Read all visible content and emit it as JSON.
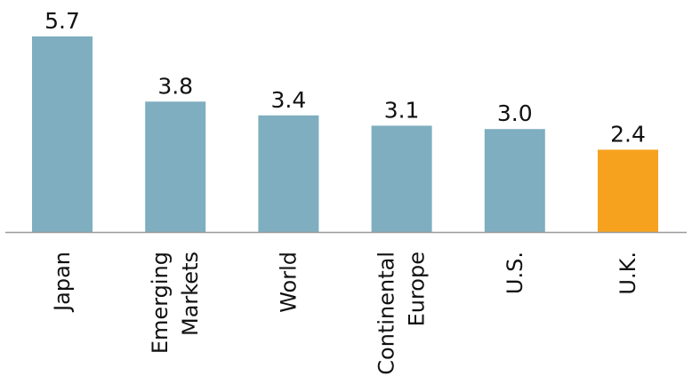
{
  "chart_data": {
    "type": "bar",
    "categories": [
      "Japan",
      "Emerging Markets",
      "World",
      "Continental Europe",
      "U.S.",
      "U.K."
    ],
    "category_lines": [
      [
        "Japan"
      ],
      [
        "Emerging",
        "Markets"
      ],
      [
        "World"
      ],
      [
        "Continental",
        "Europe"
      ],
      [
        "U.S."
      ],
      [
        "U.K."
      ]
    ],
    "values": [
      5.7,
      3.8,
      3.4,
      3.1,
      3.0,
      2.4
    ],
    "value_labels": [
      "5.7",
      "3.8",
      "3.4",
      "3.1",
      "3.0",
      "2.4"
    ],
    "bar_colors": [
      "#7eaebf",
      "#7eaebf",
      "#7eaebf",
      "#7eaebf",
      "#7eaebf",
      "#f7a21f"
    ],
    "highlight_category": "U.K.",
    "ylim": [
      0,
      5.7
    ],
    "grid": false,
    "legend": "none"
  },
  "colors": {
    "bar": "#7eaebf",
    "highlight": "#f7a21f",
    "axis": "#9a9a9a",
    "text": "#111111",
    "background": "#ffffff"
  }
}
